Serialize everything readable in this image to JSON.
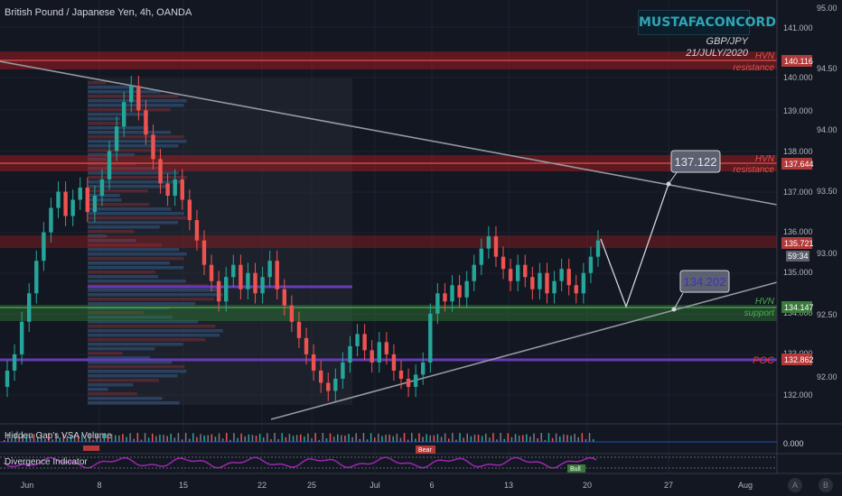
{
  "header": {
    "title": "British Pound / Japanese Yen, 4h, OANDA"
  },
  "watermark": {
    "brand": "MUSTAFACONCORD",
    "pair": "GBP/JPY",
    "date": "21/JULY/2020"
  },
  "price_scale": {
    "ticks": [
      "141.000",
      "140.000",
      "139.000",
      "138.000",
      "137.000",
      "136.000",
      "135.000",
      "134.000",
      "133.000",
      "132.000"
    ],
    "badges": [
      {
        "text": "140.116",
        "color": "#b33a3a"
      },
      {
        "text": "137.644",
        "color": "#b33a3a"
      },
      {
        "text": "135.721",
        "color": "#b33a3a"
      },
      {
        "text": "59:34",
        "color": "#5d606b"
      },
      {
        "text": "134.147",
        "color": "#3a7a3a"
      },
      {
        "text": "132.862",
        "color": "#b33a3a"
      },
      {
        "text": "0.000",
        "color": "#131722"
      }
    ]
  },
  "secondary_scale": {
    "ticks": [
      "95.00",
      "94.50",
      "94.00",
      "93.50",
      "93.00",
      "92.50",
      "92.00"
    ]
  },
  "levels": [
    {
      "tag": "HVN",
      "sub": "resistance",
      "price": 140.116,
      "color": "#e0524f"
    },
    {
      "tag": "HVN",
      "sub": "resistance",
      "price": 137.644,
      "color": "#e0524f"
    },
    {
      "tag": "HVN",
      "sub": "support",
      "price": 134.147,
      "color": "#4caf50"
    },
    {
      "tag": "POC",
      "sub": "",
      "price": 132.862,
      "color": "#e53935"
    }
  ],
  "callouts": [
    {
      "text": "137.122",
      "color": "#d1d4dc"
    },
    {
      "text": "134.202",
      "color": "#5b4bd8"
    }
  ],
  "time_axis": {
    "labels": [
      "Jun",
      "8",
      "15",
      "22",
      "25",
      "Jul",
      "6",
      "13",
      "20",
      "27",
      "Aug"
    ]
  },
  "indicators": {
    "vsa_label": "Hidden Gap's VSA Volume",
    "div_label": "Divergence Indicator",
    "bear_tag": "Bear",
    "bull_tag": "Bull"
  },
  "buttons": {
    "a_label": "A",
    "b_label": "B"
  },
  "chart_data": {
    "type": "candlestick",
    "y_range": [
      131.5,
      141.5
    ],
    "closes": [
      132.6,
      133.0,
      133.8,
      134.5,
      135.3,
      136.0,
      136.6,
      137.0,
      136.4,
      136.8,
      137.1,
      136.5,
      136.9,
      137.3,
      138.0,
      138.6,
      139.2,
      139.6,
      139.0,
      138.4,
      137.8,
      137.2,
      136.9,
      137.3,
      136.8,
      136.3,
      135.8,
      135.2,
      134.8,
      134.3,
      134.9,
      135.2,
      134.6,
      135.0,
      134.5,
      134.9,
      135.3,
      134.6,
      134.2,
      133.8,
      133.4,
      133.0,
      132.6,
      132.3,
      132.1,
      132.4,
      132.8,
      133.2,
      133.5,
      133.1,
      132.8,
      133.3,
      133.0,
      132.6,
      132.4,
      132.2,
      132.5,
      132.8,
      134.0,
      134.5,
      134.3,
      134.7,
      134.4,
      134.8,
      135.2,
      135.6,
      135.9,
      135.4,
      135.1,
      134.8,
      135.2,
      134.9,
      134.6,
      135.0,
      134.5,
      134.8,
      135.1,
      134.7,
      134.5,
      135.0,
      135.4,
      135.8
    ]
  }
}
